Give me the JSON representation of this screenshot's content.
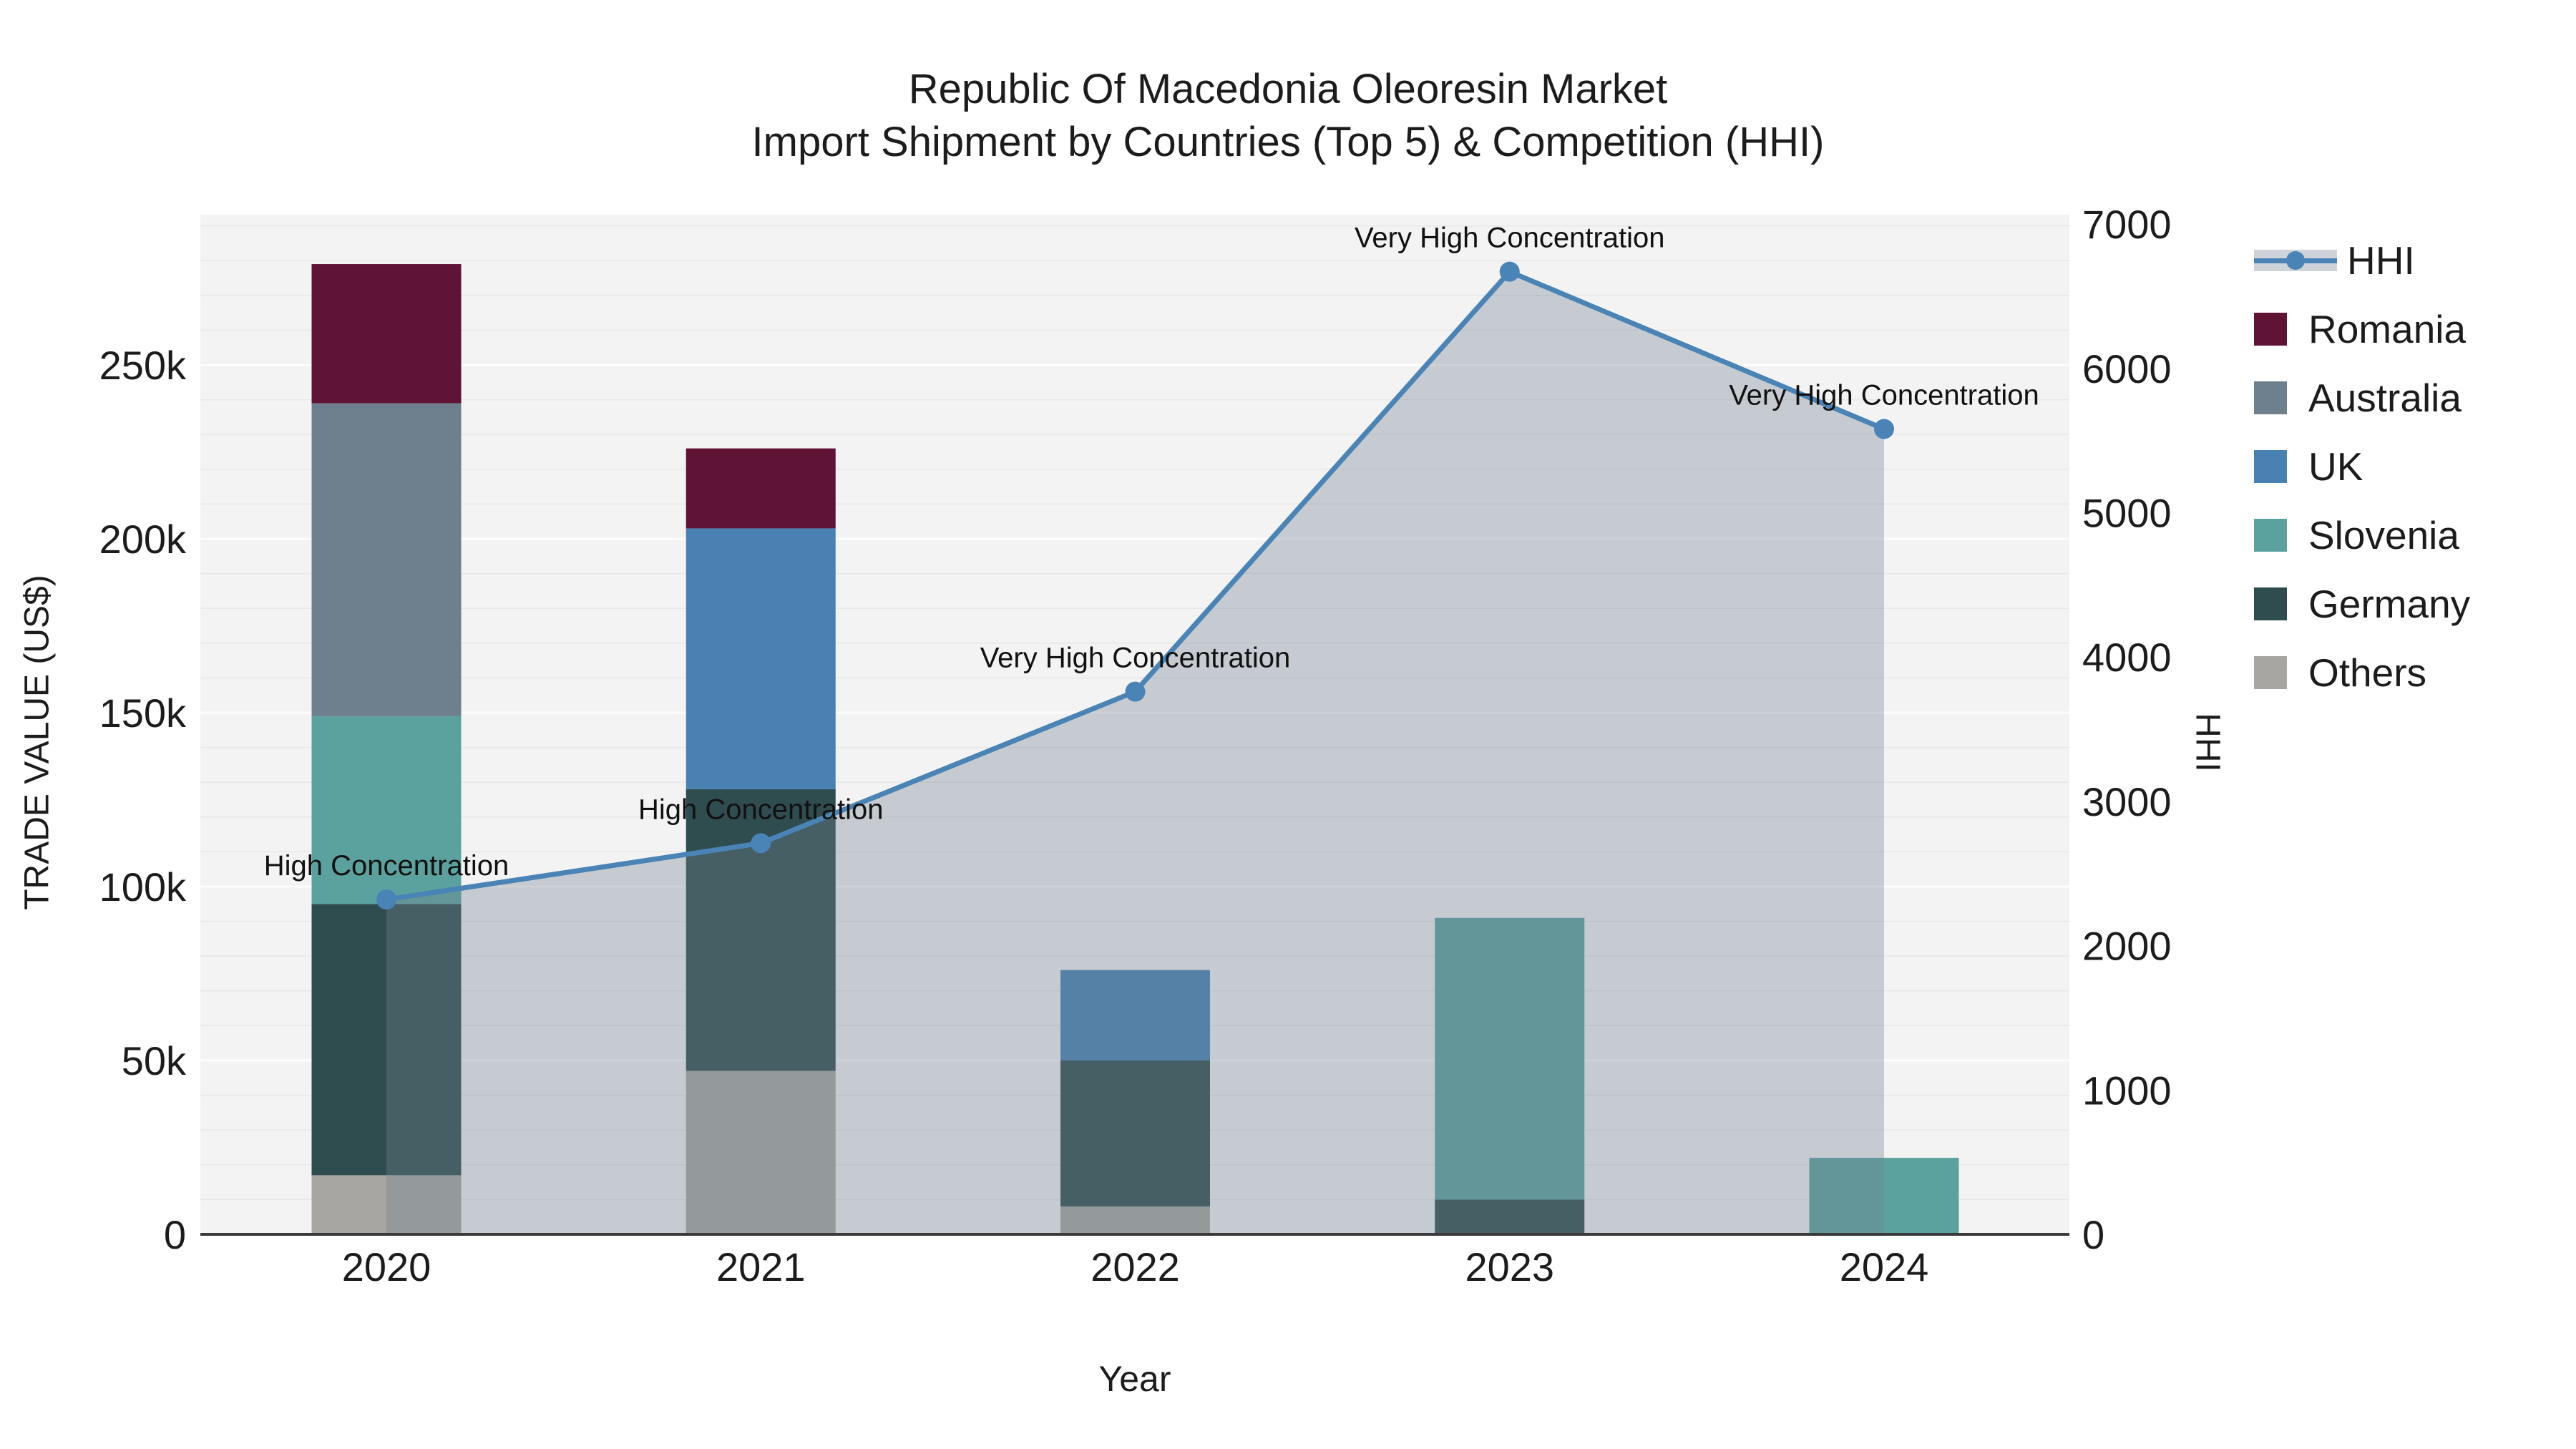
{
  "header": {
    "title_line1": "Republic Of Macedonia Oleoresin Market",
    "title_line2": "Import Shipment by Countries (Top 5) & Competition (HHI)"
  },
  "axes": {
    "left": {
      "title": "TRADE VALUE (US$)",
      "tick_values_k": [
        0,
        50,
        100,
        150,
        200,
        250
      ],
      "tick_labels": [
        "0",
        "50k",
        "100k",
        "150k",
        "200k",
        "250k"
      ],
      "max_k": 293
    },
    "right": {
      "title": "HHI",
      "tick_values": [
        0,
        1000,
        2000,
        3000,
        4000,
        5000,
        6000,
        7000
      ],
      "tick_labels": [
        "0",
        "1000",
        "2000",
        "3000",
        "4000",
        "5000",
        "6000",
        "7000"
      ],
      "max": 7066
    },
    "x": {
      "title": "Year",
      "tick_labels": [
        "2020",
        "2021",
        "2022",
        "2023",
        "2024"
      ]
    }
  },
  "chart_data": {
    "type": "combo-stacked-bar-line",
    "categories": [
      2020,
      2021,
      2022,
      2023,
      2024
    ],
    "stack_order_bottom_to_top": [
      "Others",
      "Germany",
      "Slovenia",
      "UK",
      "Australia",
      "Romania"
    ],
    "series": [
      {
        "name": "Romania",
        "color": "#5f1335",
        "values_k": [
          40,
          23,
          0,
          0,
          0
        ]
      },
      {
        "name": "Australia",
        "color": "#6e7f8d",
        "values_k": [
          90,
          0,
          0,
          0,
          0
        ]
      },
      {
        "name": "UK",
        "color": "#4881b2",
        "values_k": [
          0,
          75,
          26,
          0,
          0
        ]
      },
      {
        "name": "Slovenia",
        "color": "#5ba19e",
        "values_k": [
          54,
          0,
          0,
          81,
          22
        ]
      },
      {
        "name": "Germany",
        "color": "#2f4d4f",
        "values_k": [
          78,
          81,
          42,
          10,
          0
        ]
      },
      {
        "name": "Others",
        "color": "#a8a6a2",
        "values_k": [
          17,
          47,
          8,
          0,
          0
        ]
      }
    ],
    "totals_k": [
      279,
      226,
      76,
      91,
      22
    ],
    "line": {
      "name": "HHI",
      "color": "#4a83b5",
      "fill_color": "rgba(112,128,144,0.35)",
      "values": [
        2320,
        2710,
        3760,
        6670,
        5580
      ],
      "annotations": [
        "High Concentration",
        "High Concentration",
        "Very High Concentration",
        "Very High Concentration",
        "Very High Concentration"
      ]
    },
    "legend_position": "right",
    "grid": {
      "minor_step_k": 10,
      "major_step_k": 50,
      "minor_color": "#e7e7e7",
      "major_color": "#fdfdfd"
    },
    "plot_background": "#f3f3f3",
    "axis_line_color": "#3a3a3a"
  },
  "legend": {
    "items": [
      {
        "name": "HHI",
        "kind": "line"
      },
      {
        "name": "Romania",
        "kind": "swatch",
        "color": "#5f1335"
      },
      {
        "name": "Australia",
        "kind": "swatch",
        "color": "#6e7f8d"
      },
      {
        "name": "UK",
        "kind": "swatch",
        "color": "#4881b2"
      },
      {
        "name": "Slovenia",
        "kind": "swatch",
        "color": "#5ba19e"
      },
      {
        "name": "Germany",
        "kind": "swatch",
        "color": "#2f4d4f"
      },
      {
        "name": "Others",
        "kind": "swatch",
        "color": "#a8a6a2"
      }
    ]
  }
}
